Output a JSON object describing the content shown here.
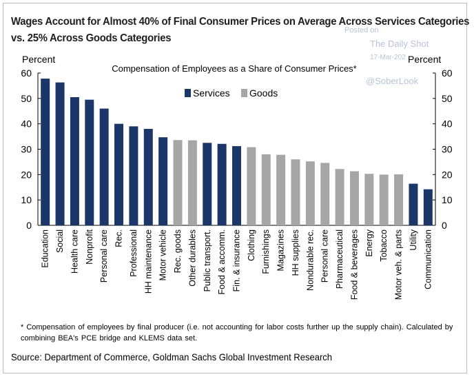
{
  "figure": {
    "title_line1": "Wages Account for Almost 40% of Final Consumer Prices on Average Across Services Categories",
    "title_line2": "vs. 25% Across Goods Categories",
    "watermark": {
      "posted": "Posted on",
      "site": "The Daily Shot",
      "date": "17-Mar-202",
      "handle": "@SoberLook"
    },
    "footnote": "* Compensation of employees by final producer (i.e. not accounting for labor costs further up the supply chain). Calculated by combining BEA's PCE bridge and KLEMS data set.",
    "source": "Source: Department of Commerce, Goldman Sachs Global Investment Research"
  },
  "chart_data": {
    "type": "bar",
    "title": "Compensation of Employees as a Share of Consumer Prices*",
    "ylabel_left": "Percent",
    "ylabel_right": "Percent",
    "ylim": [
      0,
      60
    ],
    "yticks": [
      0,
      10,
      20,
      30,
      40,
      50,
      60
    ],
    "grid": false,
    "legend": [
      {
        "name": "Services",
        "color": "#1b3668"
      },
      {
        "name": "Goods",
        "color": "#a6a6a6"
      }
    ],
    "categories": [
      "Education",
      "Social",
      "Health care",
      "Nonprofit",
      "Personal care",
      "Rec.",
      "Professional",
      "HH maintenance",
      "Motor vehicle",
      "Rec. goods",
      "Other durables",
      "Public transport.",
      "Food & accomm.",
      "Fin. & insurance",
      "Clothing",
      "Furnishings",
      "Magazines",
      "HH supplies",
      "Nondurable rec.",
      "Personal care",
      "Pharmaceutical",
      "Food & beverages",
      "Energy",
      "Tobacco",
      "Motor veh. & parts",
      "Utility",
      "Communication"
    ],
    "values": [
      57.8,
      56.3,
      50.5,
      49.5,
      46,
      40,
      39,
      38,
      34.7,
      33.6,
      33.5,
      32.5,
      32.1,
      31.2,
      30.8,
      28,
      27.8,
      26,
      25.2,
      24.6,
      22.2,
      21.3,
      20.3,
      20,
      20.1,
      16.4,
      14.2
    ],
    "groups": [
      "Services",
      "Services",
      "Services",
      "Services",
      "Services",
      "Services",
      "Services",
      "Services",
      "Services",
      "Goods",
      "Goods",
      "Services",
      "Services",
      "Services",
      "Goods",
      "Goods",
      "Goods",
      "Goods",
      "Goods",
      "Goods",
      "Goods",
      "Goods",
      "Goods",
      "Goods",
      "Goods",
      "Services",
      "Services"
    ]
  }
}
